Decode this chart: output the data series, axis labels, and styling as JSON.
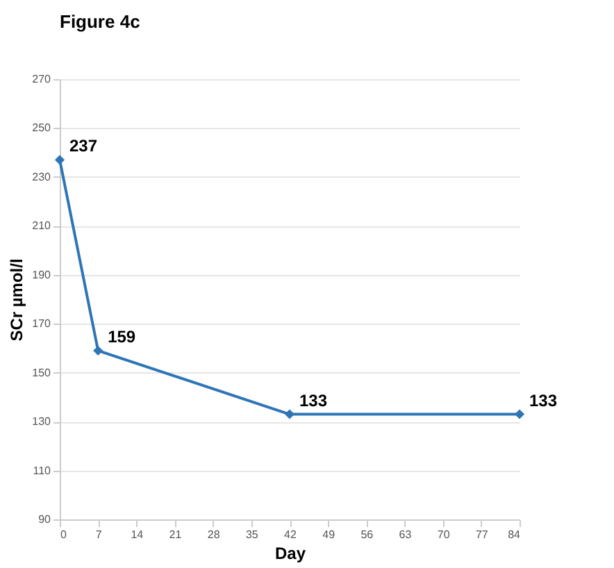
{
  "chart_data": {
    "type": "line",
    "title": "Figure 4c",
    "xlabel": "Day",
    "ylabel": "SCr µmol/l",
    "x": [
      0,
      7,
      42,
      84
    ],
    "series": [
      {
        "color": "#2e75b6",
        "values": [
          237,
          159,
          133,
          133
        ]
      }
    ],
    "data_labels": true,
    "marker": "diamond",
    "line_style": "solid",
    "grid": "y",
    "xlim": [
      0,
      84
    ],
    "xticks": [
      0,
      7,
      14,
      21,
      28,
      35,
      42,
      49,
      56,
      63,
      70,
      77,
      84
    ],
    "ylim": [
      90,
      270
    ],
    "yticks": [
      90,
      110,
      130,
      150,
      170,
      190,
      210,
      230,
      250,
      270
    ]
  }
}
